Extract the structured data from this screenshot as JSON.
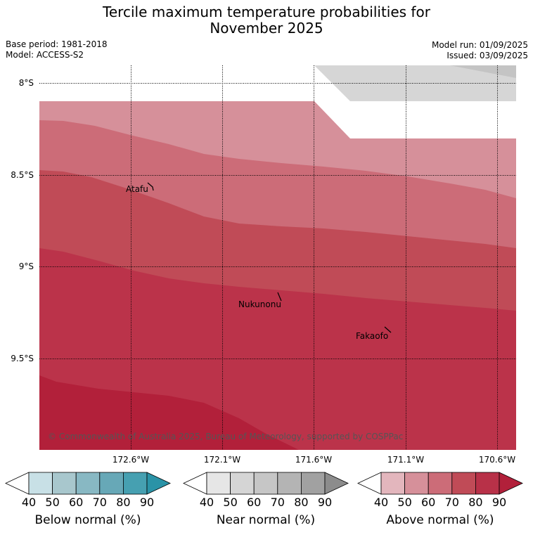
{
  "title_line1": "Tercile maximum temperature probabilities for",
  "title_line2": "November 2025",
  "base_period": "Base period: 1981-2018",
  "model": "Model: ACCESS-S2",
  "model_run": "Model run: 01/09/2025",
  "issued": "Issued: 03/09/2025",
  "lat_labels": [
    "8°S",
    "8.5°S",
    "9°S",
    "9.5°S"
  ],
  "lon_labels": [
    "172.6°W",
    "172.1°W",
    "171.6°W",
    "171.1°W",
    "170.6°W"
  ],
  "places": [
    "Atafu",
    "Nukunonu",
    "Fakaofo"
  ],
  "copyright": "© Commonwealth of Australia 2025, Bureau of Meteorology, supported by COSPPac",
  "colorbars": [
    {
      "title": "Below normal (%)",
      "ticks": [
        "40",
        "50",
        "60",
        "70",
        "80",
        "90"
      ],
      "colors": [
        "#c8e0e6",
        "#a8c7cd",
        "#88b8c3",
        "#67a8b7",
        "#46a0b1",
        "#2a93a7"
      ],
      "arrow_color": "#2a93a7"
    },
    {
      "title": "Near normal (%)",
      "ticks": [
        "40",
        "50",
        "60",
        "70",
        "80",
        "90"
      ],
      "colors": [
        "#e6e6e6",
        "#d5d5d5",
        "#c6c6c6",
        "#b4b4b4",
        "#a1a1a1",
        "#8c8c8c"
      ],
      "arrow_color": "#8c8c8c"
    },
    {
      "title": "Above normal (%)",
      "ticks": [
        "40",
        "50",
        "60",
        "70",
        "80",
        "90"
      ],
      "colors": [
        "#e3b6bd",
        "#d6909a",
        "#cc6c78",
        "#c04b57",
        "#b83148",
        "#b2203a"
      ],
      "arrow_color": "#b2203a"
    }
  ],
  "map_colors": {
    "near_grey": "#d6d6d6",
    "above_50": "#d6909a",
    "above_60": "#cc6c78",
    "above_70": "#c04b57",
    "above_80": "#bb334a",
    "above_90": "#b2203a"
  }
}
